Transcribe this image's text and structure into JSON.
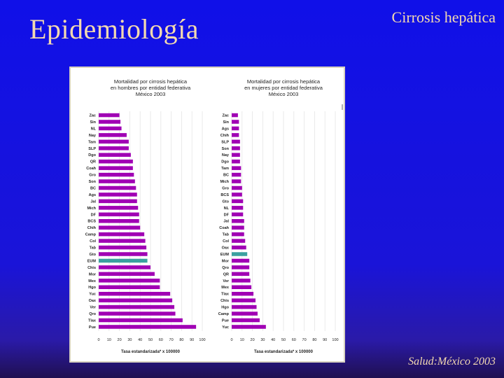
{
  "slide": {
    "title": "Epidemiología",
    "subtitle": "Cirrosis hepática",
    "footer": "Salud:México 2003"
  },
  "colors": {
    "bar": "#a000b4",
    "highlight_bar": "#3aa0a0",
    "background": "#1a14d8",
    "title_text": "#f3d9b0"
  },
  "chart_data": [
    {
      "type": "bar",
      "orientation": "horizontal",
      "title_lines": [
        "Mortalidad por cirrosis hepática",
        "en hombres por entidad federativa",
        "México 2003"
      ],
      "xlabel": "Tasa estandarizada* x 100000",
      "xlim": [
        0,
        100
      ],
      "xticks": [
        0,
        10,
        20,
        30,
        40,
        50,
        60,
        70,
        80,
        90,
        100
      ],
      "grid": true,
      "highlight": "EUM",
      "categories": [
        "Zac",
        "Sin",
        "NL",
        "Nay",
        "Tam",
        "SLP",
        "Dgo",
        "QR",
        "Coah",
        "Gro",
        "Son",
        "BC",
        "Ags",
        "Jal",
        "Mich",
        "DF",
        "BCS",
        "Chih",
        "Camp",
        "Col",
        "Tab",
        "Gto",
        "EUM",
        "Chis",
        "Mor",
        "Mex",
        "Hgo",
        "Yuc",
        "Oax",
        "Ver",
        "Qro",
        "Tlax",
        "Pue"
      ],
      "values": [
        20,
        21,
        22,
        27,
        29,
        29,
        31,
        33,
        33,
        34,
        35,
        36,
        37,
        37,
        38,
        39,
        39,
        40,
        44,
        45,
        46,
        47,
        47,
        50,
        54,
        59,
        59,
        69,
        71,
        73,
        74,
        81,
        94
      ]
    },
    {
      "type": "bar",
      "orientation": "horizontal",
      "title_lines": [
        "Mortalidad por cirrosis hepática",
        "en mujeres por entidad federativa",
        "México 2003"
      ],
      "xlabel": "Tasa estandarizada* x 100000",
      "xlim": [
        0,
        100
      ],
      "xticks": [
        0,
        10,
        20,
        30,
        40,
        50,
        60,
        70,
        80,
        90,
        100
      ],
      "grid": true,
      "highlight": "EUM",
      "categories": [
        "Zac",
        "Sin",
        "Ags",
        "Chih",
        "SLP",
        "Son",
        "Nay",
        "Dgo",
        "Tam",
        "BC",
        "Mich",
        "Gro",
        "BCS",
        "Gto",
        "NL",
        "DF",
        "Jal",
        "Coah",
        "Tab",
        "Col",
        "Oax",
        "EUM",
        "Mor",
        "Qro",
        "QR",
        "Ver",
        "Mex",
        "Tlax",
        "Chis",
        "Hgo",
        "Camp",
        "Pue",
        "Yuc"
      ],
      "values": [
        6,
        7,
        7,
        7,
        8,
        8,
        8,
        8,
        9,
        9,
        9,
        10,
        10,
        11,
        11,
        11,
        12,
        12,
        12,
        13,
        14,
        15,
        17,
        17,
        17,
        18,
        19,
        21,
        23,
        24,
        25,
        27,
        33
      ]
    }
  ]
}
